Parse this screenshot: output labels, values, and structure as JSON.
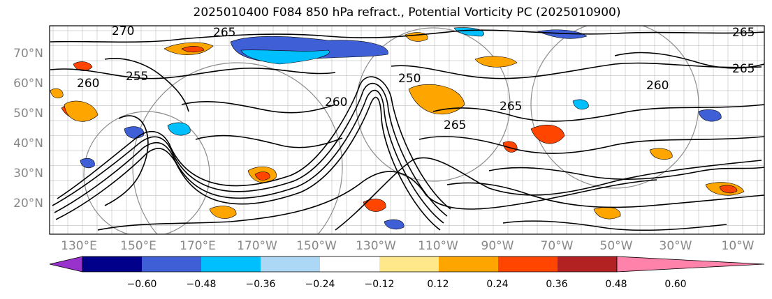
{
  "title": "2025010400 F084 850 hPa refract., Potential Vorticity PC (2025010900)",
  "map": {
    "lat_labels": [
      "70°N",
      "60°N",
      "50°N",
      "40°N",
      "30°N",
      "20°N"
    ],
    "lon_labels": [
      "130°E",
      "150°E",
      "170°E",
      "170°W",
      "150°W",
      "130°W",
      "110°W",
      "90°W",
      "70°W",
      "50°W",
      "30°W",
      "10°W"
    ],
    "contour_labels": [
      "270",
      "265",
      "255",
      "260",
      "250",
      "260",
      "265",
      "265",
      "260",
      "265",
      "265"
    ],
    "colors": {
      "land_border": "#555555",
      "contour": "#000000",
      "grid": "#9e9e9e"
    }
  },
  "colorbar": {
    "ticks": [
      "−0.60",
      "−0.48",
      "−0.36",
      "−0.24",
      "−0.12",
      "0.12",
      "0.24",
      "0.36",
      "0.48",
      "0.60"
    ],
    "colors": [
      "#9932cc",
      "#00008b",
      "#3e5fd6",
      "#00bfff",
      "#add8f5",
      "#ffffff",
      "#ffe88a",
      "#ffa500",
      "#ff4500",
      "#b22222",
      "#ff82ab"
    ]
  }
}
